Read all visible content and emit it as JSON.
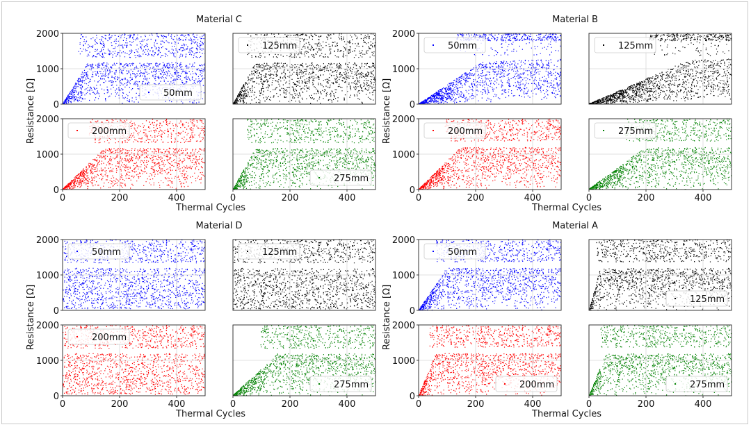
{
  "chart_data": [
    {
      "title": "Material C",
      "ylabel": "Resistance [Ω]",
      "xlabel": "Thermal Cycles",
      "type": "scatter",
      "xlim": [
        0,
        500
      ],
      "ylim": [
        0,
        2000
      ],
      "xticks": [
        "0",
        "200",
        "400"
      ],
      "yticks": [
        "0",
        "1000",
        "2000"
      ],
      "subplots": [
        {
          "name": "50mm",
          "color": "#0000ff",
          "legend": "bottom-right",
          "shape": "ramp",
          "rampEnd": 90,
          "gapLow": 1180,
          "gapHigh": 1330
        },
        {
          "name": "125mm",
          "color": "#000000",
          "legend": "top-left",
          "shape": "ramp",
          "rampEnd": 80,
          "gapLow": 1180,
          "gapHigh": 1330
        },
        {
          "name": "200mm",
          "color": "#ff0000",
          "legend": "top-left",
          "shape": "ramp",
          "rampEnd": 150,
          "gapLow": 1180,
          "gapHigh": 1330
        },
        {
          "name": "275mm",
          "color": "#008000",
          "legend": "bottom-right",
          "shape": "ramp",
          "rampEnd": 80,
          "gapLow": 1180,
          "gapHigh": 1330
        }
      ]
    },
    {
      "title": "Material B",
      "ylabel": "Resistance [Ω]",
      "xlabel": "Thermal Cycles",
      "type": "scatter",
      "xlim": [
        0,
        500
      ],
      "ylim": [
        0,
        2000
      ],
      "xticks": [
        "0",
        "200",
        "400"
      ],
      "yticks": [
        "0",
        "1000",
        "2000"
      ],
      "subplots": [
        {
          "name": "50mm",
          "color": "#0000ff",
          "legend": "top-left",
          "shape": "slow",
          "rampEnd": 220,
          "gapLow": 1200,
          "gapHigh": 1380
        },
        {
          "name": "125mm",
          "color": "#000000",
          "legend": "top-left",
          "shape": "slow",
          "rampEnd": 350,
          "gapLow": 1200,
          "gapHigh": 1380
        },
        {
          "name": "200mm",
          "color": "#ff0000",
          "legend": "top-left",
          "shape": "ramp",
          "rampEnd": 150,
          "gapLow": 1200,
          "gapHigh": 1380
        },
        {
          "name": "275mm",
          "color": "#008000",
          "legend": "top-left",
          "shape": "ramp",
          "rampEnd": 200,
          "gapLow": 1200,
          "gapHigh": 1380
        }
      ]
    },
    {
      "title": "Material D",
      "ylabel": "Resistance [Ω]",
      "xlabel": "Thermal Cycles",
      "type": "scatter",
      "xlim": [
        0,
        500
      ],
      "ylim": [
        0,
        2000
      ],
      "xticks": [
        "0",
        "200",
        "400"
      ],
      "yticks": [
        "0",
        "1000",
        "2000"
      ],
      "subplots": [
        {
          "name": "50mm",
          "color": "#0000ff",
          "legend": "top-left",
          "shape": "flat",
          "rampEnd": 0,
          "gapLow": 1200,
          "gapHigh": 1350
        },
        {
          "name": "125mm",
          "color": "#000000",
          "legend": "top-left",
          "shape": "flat",
          "rampEnd": 0,
          "gapLow": 1200,
          "gapHigh": 1350
        },
        {
          "name": "200mm",
          "color": "#ff0000",
          "legend": "top-left",
          "shape": "flat",
          "rampEnd": 0,
          "gapLow": 1200,
          "gapHigh": 1350
        },
        {
          "name": "275mm",
          "color": "#008000",
          "legend": "bottom-right",
          "shape": "ramp",
          "rampEnd": 160,
          "gapLow": 1200,
          "gapHigh": 1350
        }
      ]
    },
    {
      "title": "Material A",
      "ylabel": "Resistance [Ω]",
      "xlabel": "Thermal Cycles",
      "type": "scatter",
      "xlim": [
        0,
        500
      ],
      "ylim": [
        0,
        2000
      ],
      "xticks": [
        "0",
        "200",
        "400"
      ],
      "yticks": [
        "0",
        "1000",
        "2000"
      ],
      "subplots": [
        {
          "name": "50mm",
          "color": "#0000ff",
          "legend": "top-left",
          "shape": "ramp",
          "rampEnd": 100,
          "gapLow": 1200,
          "gapHigh": 1380
        },
        {
          "name": "125mm",
          "color": "#000000",
          "legend": "bottom-right",
          "shape": "ramp",
          "rampEnd": 40,
          "gapLow": 1200,
          "gapHigh": 1380
        },
        {
          "name": "200mm",
          "color": "#ff0000",
          "legend": "bottom-right",
          "shape": "ramp",
          "rampEnd": 60,
          "gapLow": 1200,
          "gapHigh": 1380
        },
        {
          "name": "275mm",
          "color": "#008000",
          "legend": "bottom-right",
          "shape": "ramp",
          "rampEnd": 60,
          "gapLow": 1200,
          "gapHigh": 1380
        }
      ]
    }
  ]
}
